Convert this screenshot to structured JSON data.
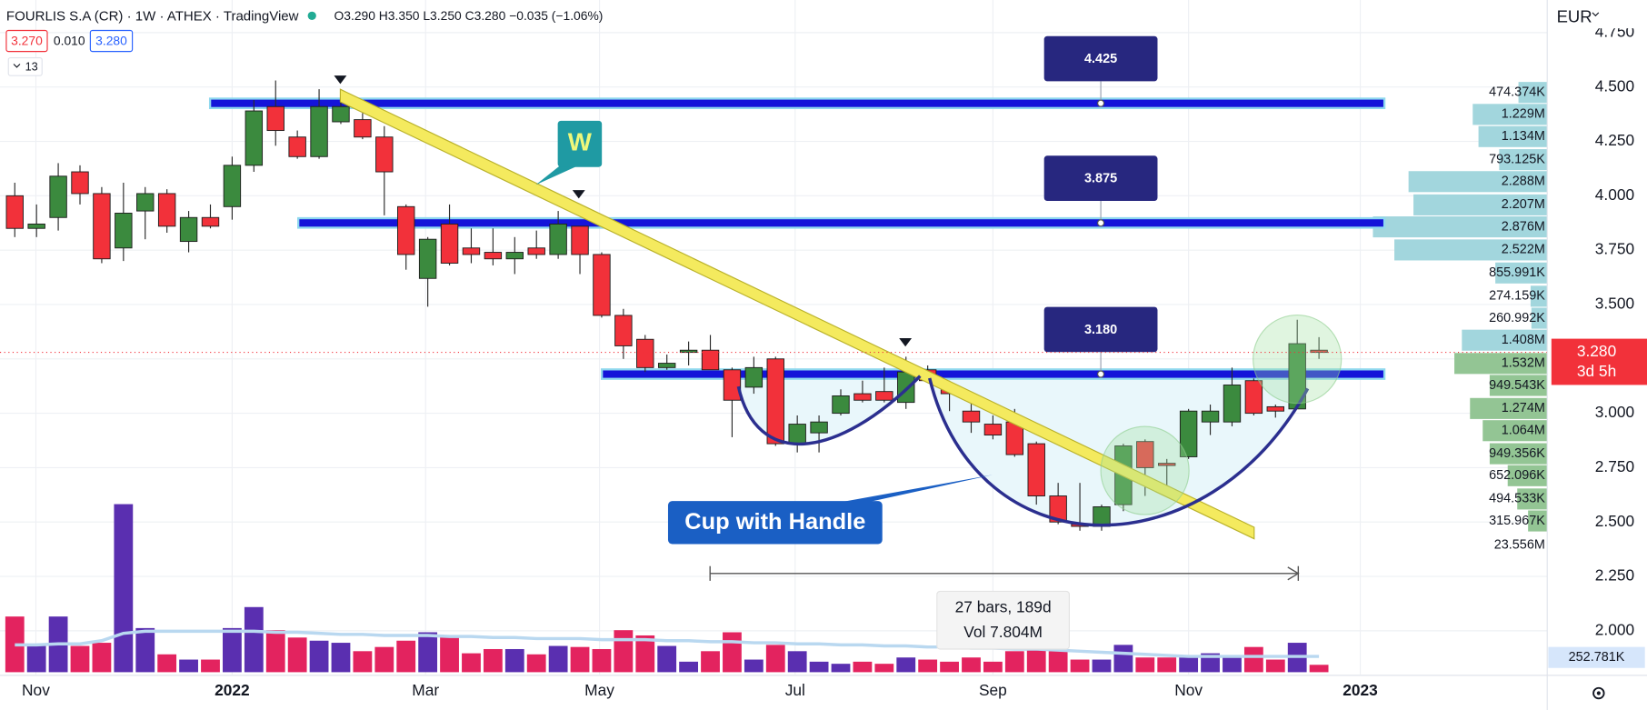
{
  "chart_data": {
    "type": "candlestick",
    "title": "FOURLIS S.A (CR) · 1W · ATHEX · TradingView",
    "ohlc_readout": "O3.290 H3.350 L3.250 C3.280 −0.035 (−1.06%)",
    "up_color": "#3b8a3e",
    "down_color": "#f2313a",
    "grid": true,
    "xlim": [
      -0.68,
      70.5
    ],
    "xticks": [
      {
        "value": 0.97,
        "label": "Nov"
      },
      {
        "value": 10,
        "label": "2022"
      },
      {
        "value": 18.9,
        "label": "Mar"
      },
      {
        "value": 26.9,
        "label": "May"
      },
      {
        "value": 35.9,
        "label": "Jul"
      },
      {
        "value": 45,
        "label": "Sep"
      },
      {
        "value": 54,
        "label": "Nov"
      },
      {
        "value": 61.9,
        "label": "2023"
      }
    ],
    "ylim": [
      1.8,
      4.9
    ],
    "yticks": [
      {
        "value": 2,
        "label": "2.000"
      },
      {
        "value": 2.25,
        "label": "2.250"
      },
      {
        "value": 2.5,
        "label": "2.500"
      },
      {
        "value": 2.75,
        "label": "2.750"
      },
      {
        "value": 3,
        "label": "3.000"
      },
      {
        "value": 3.25,
        "label": "3.250"
      },
      {
        "value": 3.5,
        "label": "3.500"
      },
      {
        "value": 3.75,
        "label": "3.750"
      },
      {
        "value": 4,
        "label": "4.000"
      },
      {
        "value": 4.25,
        "label": "4.250"
      },
      {
        "value": 4.5,
        "label": "4.500"
      },
      {
        "value": 4.75,
        "label": "4.750"
      }
    ],
    "open": [
      4.0,
      3.85,
      3.9,
      4.11,
      4.01,
      3.76,
      3.93,
      4.01,
      3.79,
      3.9,
      3.95,
      4.14,
      4.41,
      4.27,
      4.18,
      4.34,
      4.35,
      4.27,
      3.95,
      3.62,
      3.87,
      3.76,
      3.74,
      3.71,
      3.76,
      3.73,
      3.86,
      3.73,
      3.45,
      3.34,
      3.21,
      3.28,
      3.29,
      3.2,
      3.12,
      3.25,
      2.86,
      2.91,
      3.0,
      3.09,
      3.1,
      3.05,
      3.2,
      3.12,
      3.01,
      2.95,
      2.96,
      2.86,
      2.62,
      2.49,
      2.48,
      2.58,
      2.87,
      2.77,
      2.8,
      2.96,
      2.96,
      3.15,
      3.03,
      3.02,
      3.29
    ],
    "high": [
      4.06,
      3.96,
      4.15,
      4.14,
      4.04,
      4.06,
      4.04,
      4.03,
      3.93,
      3.96,
      4.18,
      4.44,
      4.53,
      4.3,
      4.49,
      4.47,
      4.38,
      4.32,
      3.96,
      3.81,
      3.96,
      3.85,
      3.85,
      3.81,
      3.84,
      3.93,
      3.86,
      3.74,
      3.48,
      3.36,
      3.27,
      3.33,
      3.36,
      3.21,
      3.26,
      3.26,
      2.99,
      2.99,
      3.11,
      3.15,
      3.21,
      3.26,
      3.22,
      3.15,
      3.07,
      2.99,
      3.02,
      2.87,
      2.68,
      2.68,
      2.58,
      2.86,
      2.88,
      2.79,
      3.02,
      3.04,
      3.21,
      3.16,
      3.04,
      3.43,
      3.35
    ],
    "low": [
      3.81,
      3.81,
      3.84,
      3.96,
      3.69,
      3.7,
      3.8,
      3.83,
      3.74,
      3.85,
      3.89,
      4.11,
      4.23,
      4.17,
      4.17,
      4.33,
      4.26,
      3.91,
      3.66,
      3.49,
      3.68,
      3.69,
      3.68,
      3.64,
      3.71,
      3.71,
      3.64,
      3.44,
      3.25,
      3.19,
      3.2,
      3.22,
      3.2,
      2.89,
      3.09,
      2.85,
      2.82,
      2.82,
      2.99,
      3.05,
      3.05,
      3.02,
      3.14,
      3.01,
      2.91,
      2.88,
      2.8,
      2.58,
      2.49,
      2.46,
      2.46,
      2.55,
      2.62,
      2.62,
      2.79,
      2.9,
      2.94,
      2.99,
      2.98,
      3.02,
      3.25
    ],
    "close": [
      3.85,
      3.87,
      4.09,
      4.01,
      3.71,
      3.92,
      4.01,
      3.86,
      3.9,
      3.86,
      4.14,
      4.39,
      4.3,
      4.18,
      4.41,
      4.41,
      4.27,
      4.11,
      3.73,
      3.8,
      3.69,
      3.73,
      3.71,
      3.74,
      3.73,
      3.87,
      3.73,
      3.45,
      3.31,
      3.21,
      3.23,
      3.29,
      3.2,
      3.06,
      3.21,
      2.86,
      2.95,
      2.96,
      3.08,
      3.06,
      3.06,
      3.19,
      3.15,
      3.09,
      2.96,
      2.9,
      2.81,
      2.62,
      2.5,
      2.48,
      2.57,
      2.85,
      2.75,
      2.76,
      3.01,
      3.01,
      3.13,
      3.0,
      3.01,
      3.32,
      3.28
    ],
    "volume": {
      "up_color": "#5a2fb0",
      "down_color": "#e3235f",
      "ma_color": "#b9d8f0",
      "values": [
        1908,
        936,
        1908,
        900,
        1008,
        5760,
        1512,
        612,
        432,
        432,
        1512,
        2232,
        1440,
        1188,
        1080,
        1008,
        720,
        864,
        1080,
        1368,
        1260,
        648,
        792,
        792,
        612,
        900,
        864,
        792,
        1440,
        1260,
        900,
        360,
        720,
        1368,
        432,
        936,
        720,
        360,
        288,
        360,
        288,
        504,
        432,
        360,
        504,
        360,
        720,
        972,
        720,
        432,
        432,
        936,
        504,
        504,
        504,
        648,
        504,
        864,
        432,
        1008,
        252.781
      ],
      "value_labels": [
        null,
        null,
        null,
        null,
        null,
        null,
        null,
        null,
        null,
        null,
        null,
        null,
        null,
        null,
        null,
        null,
        null,
        null,
        null,
        null,
        null,
        null,
        null,
        null,
        null,
        null,
        null,
        null,
        null,
        null,
        null,
        null,
        null,
        null,
        null,
        null,
        null,
        null,
        null,
        null,
        null,
        null,
        null,
        null,
        null,
        null,
        null,
        null,
        null,
        null,
        null,
        null,
        null,
        null,
        null,
        null,
        null,
        null,
        null,
        null,
        "252.781K"
      ],
      "ma": [
        936,
        936,
        972,
        972,
        1080,
        1332,
        1404,
        1404,
        1404,
        1404,
        1404,
        1404,
        1368,
        1368,
        1332,
        1296,
        1296,
        1260,
        1260,
        1260,
        1224,
        1224,
        1188,
        1188,
        1152,
        1152,
        1152,
        1116,
        1116,
        1116,
        1080,
        1080,
        1044,
        1044,
        1008,
        1008,
        972,
        972,
        936,
        936,
        900,
        900,
        864,
        864,
        828,
        828,
        792,
        792,
        756,
        720,
        684,
        648,
        612,
        576,
        540,
        540,
        540,
        540,
        540,
        540,
        540
      ]
    },
    "profile": {
      "color_above": "#a2d6dd",
      "color_below": "#93c594",
      "levels": [
        4.475,
        4.374,
        4.272,
        4.166,
        4.065,
        3.958,
        3.857,
        3.751,
        3.645,
        3.538,
        3.437,
        3.336,
        3.229,
        3.128,
        3.022,
        2.92,
        2.814,
        2.713,
        2.606,
        2.505
      ],
      "values": [
        474.374,
        1229,
        1134,
        793.125,
        2288,
        2207,
        2876,
        2522,
        855.991,
        274.159,
        260.992,
        1408,
        1532,
        949.543,
        1274,
        1064,
        949.356,
        652.096,
        494.533,
        315.967
      ],
      "value_labels": [
        "474.374K",
        "1.229M",
        "1.134M",
        "793.125K",
        "2.288M",
        "2.207M",
        "2.876M",
        "2.522M",
        "855.991K",
        "274.159K",
        "260.992K",
        "1.408M",
        "1.532M",
        "949.543K",
        "1.274M",
        "1.064M",
        "949.356K",
        "652.096K",
        "494.533K",
        "315.967K"
      ],
      "total": {
        "value": 23556,
        "label": "23.556M"
      }
    },
    "levels": [
      4.425,
      3.875,
      {
        "value": 3.18,
        "label": "3.180"
      }
    ]
  },
  "toolbar": {
    "bid": "3.270",
    "spread": "0.010",
    "ask": "3.280",
    "indicators": "13",
    "currency": "EUR",
    "last_price": "3.280",
    "countdown": "3d 5h"
  },
  "annotations": {
    "pattern_w": "W",
    "pattern_cup": "Cup with Handle",
    "range_bars": "27 bars, 189d",
    "range_volume": "Vol 7.804M"
  }
}
